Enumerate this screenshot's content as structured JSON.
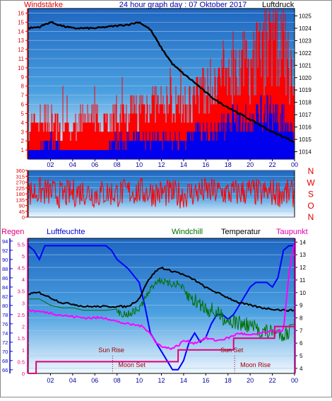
{
  "chart_data": [
    {
      "type": "line",
      "title": "24 hour graph day : 07 Oktober 2017",
      "left_axis_label": "Windstärke",
      "right_axis_label": "Luftdruck",
      "x_tick_labels": [
        "02",
        "04",
        "06",
        "08",
        "10",
        "12",
        "14",
        "16",
        "18",
        "20",
        "22",
        "00"
      ],
      "left_ylim": [
        0,
        16.5
      ],
      "left_ticks": [
        1,
        2,
        3,
        4,
        5,
        6,
        7,
        8,
        9,
        10,
        11,
        12,
        13,
        14,
        15,
        16
      ],
      "right_ylim": [
        1013.4,
        1025.6
      ],
      "right_ticks": [
        1014,
        1015,
        1016,
        1017,
        1018,
        1019,
        1020,
        1021,
        1022,
        1023,
        1024,
        1025
      ],
      "series": [
        {
          "axis": "right",
          "color": "#000000",
          "x": [
            0,
            1,
            2,
            3,
            4,
            5,
            6,
            7,
            8,
            9,
            10,
            11,
            12,
            13,
            14,
            15,
            16,
            17,
            18,
            19,
            20,
            21,
            22,
            23,
            24
          ],
          "values": [
            1024.0,
            1024.1,
            1024.5,
            1024.2,
            1024.0,
            1024.0,
            1024.0,
            1024.1,
            1024.2,
            1024.3,
            1024.5,
            1023.9,
            1022.4,
            1021.1,
            1020.3,
            1019.6,
            1018.8,
            1018.1,
            1017.6,
            1017.1,
            1016.6,
            1016.1,
            1015.6,
            1015.2,
            1014.8
          ]
        },
        {
          "axis": "left",
          "color": "#ff0000",
          "x": [
            0,
            1,
            2,
            3,
            4,
            5,
            6,
            7,
            8,
            9,
            10,
            11,
            12,
            13,
            14,
            15,
            16,
            17,
            18,
            19,
            20,
            21,
            22,
            23,
            24
          ],
          "values": [
            3,
            4,
            4,
            3,
            3,
            4,
            4,
            4,
            4,
            5,
            5,
            6,
            5,
            6,
            5,
            6,
            7,
            8,
            9,
            10,
            9,
            11,
            12,
            11,
            7
          ]
        },
        {
          "axis": "left",
          "color": "#0000ff",
          "x": [
            0,
            1,
            2,
            3,
            4,
            5,
            6,
            7,
            8,
            9,
            10,
            11,
            12,
            13,
            14,
            15,
            16,
            17,
            18,
            19,
            20,
            21,
            22,
            23,
            24
          ],
          "values": [
            1,
            1,
            2,
            1,
            1,
            1,
            1,
            1,
            2,
            2,
            2,
            2,
            2,
            2,
            2,
            3,
            3,
            3,
            4,
            4,
            4,
            5,
            5,
            4,
            3
          ]
        }
      ]
    },
    {
      "type": "scatter",
      "ylim": [
        0,
        360
      ],
      "left_ticks": [
        0,
        45,
        90,
        135,
        180,
        225,
        270,
        315,
        360
      ],
      "right_labels": [
        "N",
        "W",
        "S",
        "O",
        "N"
      ],
      "series": [
        {
          "color": "#ff0000",
          "x": [
            0,
            1,
            2,
            3,
            4,
            5,
            6,
            7,
            8,
            9,
            10,
            11,
            12,
            13,
            14,
            15,
            16,
            17,
            18,
            19,
            20,
            21,
            22,
            23,
            24
          ],
          "values": [
            180,
            200,
            190,
            170,
            185,
            200,
            175,
            190,
            180,
            195,
            200,
            190,
            185,
            180,
            175,
            190,
            200,
            195,
            185,
            190,
            200,
            180,
            190,
            185,
            180
          ]
        }
      ]
    },
    {
      "type": "line",
      "labels": {
        "regen": "Regen",
        "luftfeuchte": "Luftfeuchte",
        "windchill": "Windchill",
        "temperatur": "Temperatur",
        "taupunkt": "Taupunkt"
      },
      "x_tick_labels": [
        "02",
        "04",
        "06",
        "08",
        "10",
        "12",
        "14",
        "16",
        "18",
        "20",
        "22",
        "00"
      ],
      "regen_ticks": [
        0,
        0.5,
        1,
        1.5,
        2,
        2.5,
        3,
        3.5,
        4,
        4.5,
        5,
        5.5
      ],
      "regen_ylim": [
        0,
        5.75
      ],
      "humidity_ticks": [
        66,
        68,
        70,
        72,
        74,
        76,
        78,
        80,
        82,
        84,
        86,
        88,
        90,
        92,
        94
      ],
      "humidity_ylim": [
        65.2,
        94.6
      ],
      "temperature_ticks": [
        4,
        5,
        6,
        7,
        8,
        9,
        10,
        11,
        12,
        13,
        14
      ],
      "temperature_ylim": [
        3.6,
        14.3
      ],
      "annotations": [
        {
          "label": "Sun Rise",
          "x": 7.6
        },
        {
          "label": "Moon Set",
          "x": 7.6
        },
        {
          "label": "Sun Set",
          "x": 18.6
        },
        {
          "label": "Moon Rise",
          "x": 18.6
        }
      ],
      "series": [
        {
          "name": "Luftfeuchte",
          "color": "#0000ff",
          "axis": "humidity",
          "x": [
            0,
            0.5,
            1,
            1.5,
            2,
            4,
            6,
            7,
            7.5,
            8,
            8.5,
            9,
            10,
            10.5,
            11,
            11.5,
            12,
            12.5,
            13,
            13.5,
            14,
            14.5,
            15,
            15.5,
            16,
            16.5,
            17,
            17.5,
            18,
            18.5,
            19,
            19.5,
            20,
            20.5,
            21,
            21.5,
            22,
            22.5,
            23,
            23.5,
            24
          ],
          "values": [
            93,
            92,
            90,
            93,
            93,
            93,
            93,
            93,
            92,
            90,
            89,
            88,
            85,
            80,
            74,
            72,
            70,
            68,
            66,
            66,
            68,
            72,
            74,
            72,
            73,
            76,
            78,
            78,
            77,
            78,
            80,
            82,
            84,
            85,
            85,
            85,
            84,
            86,
            92,
            93,
            93
          ]
        },
        {
          "name": "Windchill",
          "color": "#007000",
          "axis": "temperature",
          "x": [
            0,
            1,
            2,
            3,
            4,
            5,
            6,
            7,
            8,
            9,
            10,
            10.5,
            11,
            11.5,
            12,
            12.5,
            13,
            13.5,
            14,
            15,
            16,
            17,
            18,
            19,
            20,
            21,
            22,
            23,
            24
          ],
          "values": [
            9.5,
            9.5,
            9.0,
            8.8,
            8.8,
            8.6,
            8.6,
            8.6,
            8.7,
            8.6,
            9.0,
            9.8,
            10.5,
            11.2,
            11.3,
            11.0,
            11.0,
            11.0,
            10.6,
            10.0,
            9.5,
            9.0,
            8.5,
            8.2,
            8.0,
            7.6,
            7.5,
            7.4,
            7.5
          ]
        },
        {
          "name": "Temperatur",
          "color": "#000000",
          "axis": "temperature",
          "x": [
            0,
            1,
            2,
            3,
            4,
            5,
            6,
            7,
            8,
            9,
            10,
            10.5,
            11,
            11.5,
            12,
            12.5,
            13,
            13.5,
            14,
            15,
            16,
            17,
            18,
            19,
            20,
            21,
            22,
            23,
            24
          ],
          "values": [
            9.9,
            10.0,
            9.6,
            9.2,
            9.1,
            8.9,
            8.9,
            8.9,
            8.9,
            8.9,
            9.5,
            10.5,
            11.2,
            11.7,
            12.0,
            11.8,
            11.7,
            11.6,
            11.4,
            11.0,
            10.4,
            10.0,
            9.6,
            9.2,
            9.0,
            8.8,
            8.7,
            8.6,
            8.6
          ]
        },
        {
          "name": "Taupunkt",
          "color": "#ff00ff",
          "axis": "temperature",
          "x": [
            0,
            1,
            2,
            3,
            4,
            5,
            6,
            7,
            8,
            9,
            10,
            10.5,
            11,
            11.5,
            12,
            12.5,
            13,
            13.5,
            14,
            15,
            16,
            17,
            18,
            19,
            20,
            21,
            22,
            23,
            23.5,
            24
          ],
          "values": [
            8.6,
            8.5,
            8.4,
            8.2,
            8.1,
            8.0,
            8.0,
            8.0,
            7.7,
            7.5,
            7.4,
            7.2,
            6.8,
            6.0,
            5.8,
            5.6,
            5.6,
            5.8,
            6.2,
            6.0,
            6.4,
            6.2,
            6.4,
            6.8,
            6.6,
            6.8,
            6.9,
            7.0,
            11.5,
            14.0
          ]
        },
        {
          "name": "Regen",
          "color": "#e0007a",
          "axis": "regen",
          "x": [
            0,
            0.7,
            0.71,
            13.5,
            13.51,
            18.5,
            18.51,
            22.2,
            22.21,
            24
          ],
          "values": [
            0,
            0,
            0.5,
            0.5,
            1.0,
            1.0,
            1.5,
            1.5,
            2.0,
            2.0
          ]
        }
      ]
    }
  ]
}
